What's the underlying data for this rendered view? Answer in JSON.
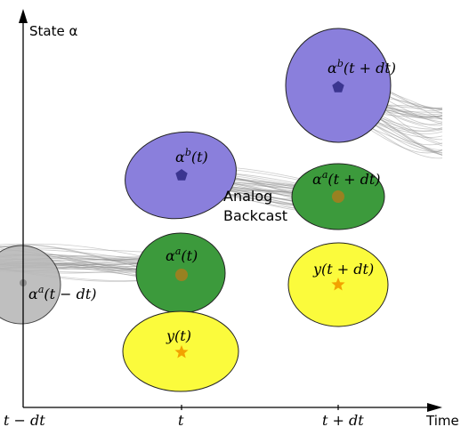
{
  "axes": {
    "y_label": "State α",
    "x_label": "Time",
    "x_ticks": [
      "t − dt",
      "t",
      "t + dt"
    ]
  },
  "labels": {
    "alpha_a_t_minus_dt": "αa(t − dt)",
    "alpha_b_t": "αb(t)",
    "alpha_a_t": "αa(t)",
    "y_t": "y(t)",
    "alpha_b_t_plus_dt": "αb(t + dt)",
    "alpha_a_t_plus_dt": "αa(t + dt)",
    "y_t_plus_dt": "y(t + dt)",
    "analog_line1": "Analog",
    "analog_line2": "Backcast"
  },
  "colors": {
    "blue_ellipse": "#8a7fdc",
    "green_ellipse": "#3c9a3c",
    "yellow_ellipse": "#fbfb3c",
    "gray_ellipse": "#b9b9b9",
    "star": "#f2a200",
    "pentagon": "#3b3590",
    "trajectory": "#8c8c8c"
  }
}
